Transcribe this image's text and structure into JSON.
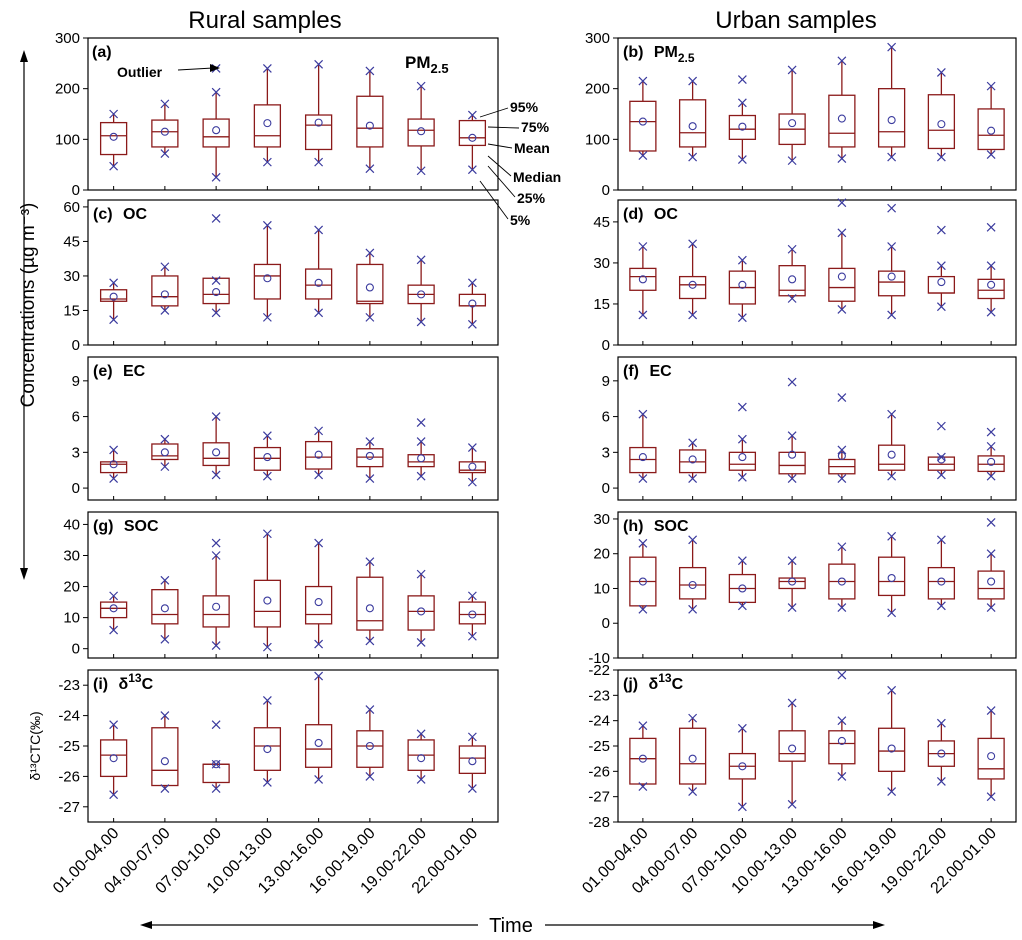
{
  "figure": {
    "left_title": "Rural samples",
    "right_title": "Urban samples",
    "ylabel": "Concentrations (µg m⁻³)",
    "xlabel": "Time",
    "bottom_ylabel": "δ¹³CTC(‰)"
  },
  "colors": {
    "box": "#8b1a1a",
    "marker": "#3b3b9e",
    "axis": "#000000"
  },
  "legend_annotations": {
    "outlier": "Outlier",
    "p95": "95%",
    "p75": "75%",
    "mean": "Mean",
    "median": "Median",
    "p25": "25%",
    "p5": "5%"
  },
  "categories": [
    "01.00-04.00",
    "04.00-07.00",
    "07.00-10.00",
    "10.00-13.00",
    "13.00-16.00",
    "16.00-19.00",
    "19.00-22.00",
    "22.00-01.00"
  ],
  "chart_data": [
    {
      "type": "box",
      "panel": "(a)",
      "label": "PM",
      "label_sub": "2.5",
      "site": "rural",
      "ylim": [
        0,
        300
      ],
      "yticks": [
        0,
        100,
        200,
        300
      ],
      "boxes": [
        {
          "p5": 47,
          "p25": 70,
          "median": 107,
          "mean": 105,
          "p75": 133,
          "p95": 150
        },
        {
          "p5": 72,
          "p25": 85,
          "median": 115,
          "mean": 115,
          "p75": 138,
          "p95": 170
        },
        {
          "p5": 25,
          "p25": 85,
          "median": 105,
          "mean": 118,
          "p75": 140,
          "p95": 193
        },
        {
          "p5": 55,
          "p25": 85,
          "median": 107,
          "mean": 132,
          "p75": 168,
          "p95": 240
        },
        {
          "p5": 55,
          "p25": 80,
          "median": 128,
          "mean": 133,
          "p75": 148,
          "p95": 248
        },
        {
          "p5": 42,
          "p25": 85,
          "median": 122,
          "mean": 127,
          "p75": 185,
          "p95": 235
        },
        {
          "p5": 38,
          "p25": 87,
          "median": 118,
          "mean": 116,
          "p75": 140,
          "p95": 205
        },
        {
          "p5": 40,
          "p25": 88,
          "median": 103,
          "mean": 103,
          "p75": 137,
          "p95": 148
        }
      ],
      "outliers": [
        {
          "i": 2,
          "v": 240
        }
      ]
    },
    {
      "type": "box",
      "panel": "(b)",
      "label": "PM",
      "label_sub": "2.5",
      "site": "urban",
      "ylim": [
        0,
        300
      ],
      "yticks": [
        0,
        100,
        200,
        300
      ],
      "boxes": [
        {
          "p5": 68,
          "p25": 77,
          "median": 135,
          "mean": 135,
          "p75": 175,
          "p95": 215
        },
        {
          "p5": 65,
          "p25": 85,
          "median": 113,
          "mean": 126,
          "p75": 178,
          "p95": 215
        },
        {
          "p5": 60,
          "p25": 100,
          "median": 120,
          "mean": 125,
          "p75": 147,
          "p95": 172
        },
        {
          "p5": 58,
          "p25": 90,
          "median": 120,
          "mean": 132,
          "p75": 150,
          "p95": 237
        },
        {
          "p5": 62,
          "p25": 85,
          "median": 112,
          "mean": 141,
          "p75": 187,
          "p95": 255
        },
        {
          "p5": 65,
          "p25": 85,
          "median": 115,
          "mean": 138,
          "p75": 200,
          "p95": 282
        },
        {
          "p5": 65,
          "p25": 82,
          "median": 118,
          "mean": 130,
          "p75": 188,
          "p95": 232
        },
        {
          "p5": 70,
          "p25": 80,
          "median": 108,
          "mean": 117,
          "p75": 160,
          "p95": 205
        }
      ],
      "outliers": [
        {
          "i": 2,
          "v": 218
        }
      ]
    },
    {
      "type": "box",
      "panel": "(c)",
      "label": "OC",
      "site": "rural",
      "ylim": [
        0,
        63
      ],
      "yticks": [
        0,
        15,
        30,
        45,
        60
      ],
      "boxes": [
        {
          "p5": 11,
          "p25": 19,
          "median": 20,
          "mean": 21,
          "p75": 24,
          "p95": 27
        },
        {
          "p5": 15,
          "p25": 17,
          "median": 21,
          "mean": 22,
          "p75": 30,
          "p95": 34
        },
        {
          "p5": 14,
          "p25": 18,
          "median": 22,
          "mean": 23,
          "p75": 29,
          "p95": 28
        },
        {
          "p5": 12,
          "p25": 20,
          "median": 30,
          "mean": 29,
          "p75": 35,
          "p95": 52
        },
        {
          "p5": 14,
          "p25": 20,
          "median": 26,
          "mean": 27,
          "p75": 33,
          "p95": 50
        },
        {
          "p5": 12,
          "p25": 18,
          "median": 19,
          "mean": 25,
          "p75": 35,
          "p95": 40
        },
        {
          "p5": 10,
          "p25": 18,
          "median": 22,
          "mean": 22,
          "p75": 26,
          "p95": 37
        },
        {
          "p5": 9,
          "p25": 17,
          "median": 17,
          "mean": 18,
          "p75": 22,
          "p95": 27
        }
      ],
      "outliers": [
        {
          "i": 2,
          "v": 55
        }
      ]
    },
    {
      "type": "box",
      "panel": "(d)",
      "label": "OC",
      "site": "urban",
      "ylim": [
        0,
        53
      ],
      "yticks": [
        0,
        15,
        30,
        45
      ],
      "boxes": [
        {
          "p5": 11,
          "p25": 20,
          "median": 25,
          "mean": 24,
          "p75": 28,
          "p95": 36
        },
        {
          "p5": 11,
          "p25": 17,
          "median": 22,
          "mean": 22,
          "p75": 25,
          "p95": 37
        },
        {
          "p5": 10,
          "p25": 15,
          "median": 21,
          "mean": 22,
          "p75": 27,
          "p95": 31
        },
        {
          "p5": 17,
          "p25": 18,
          "median": 20,
          "mean": 24,
          "p75": 29,
          "p95": 35
        },
        {
          "p5": 13,
          "p25": 16,
          "median": 21,
          "mean": 25,
          "p75": 28,
          "p95": 41
        },
        {
          "p5": 11,
          "p25": 18,
          "median": 23,
          "mean": 25,
          "p75": 27,
          "p95": 36
        },
        {
          "p5": 14,
          "p25": 19,
          "median": 19,
          "mean": 23,
          "p75": 25,
          "p95": 29
        },
        {
          "p5": 12,
          "p25": 17,
          "median": 20,
          "mean": 22,
          "p75": 24,
          "p95": 29
        }
      ],
      "outliers": [
        {
          "i": 4,
          "v": 52
        },
        {
          "i": 5,
          "v": 50
        },
        {
          "i": 6,
          "v": 42
        },
        {
          "i": 7,
          "v": 43
        }
      ]
    },
    {
      "type": "box",
      "panel": "(e)",
      "label": "EC",
      "site": "rural",
      "ylim": [
        -1,
        11
      ],
      "yticks": [
        0,
        3,
        6,
        9
      ],
      "boxes": [
        {
          "p5": 0.8,
          "p25": 1.3,
          "median": 2.0,
          "mean": 2.0,
          "p75": 2.2,
          "p95": 3.2
        },
        {
          "p5": 1.8,
          "p25": 2.4,
          "median": 2.7,
          "mean": 3.0,
          "p75": 3.7,
          "p95": 4.1
        },
        {
          "p5": 1.1,
          "p25": 1.9,
          "median": 2.5,
          "mean": 3.0,
          "p75": 3.8,
          "p95": 6.0
        },
        {
          "p5": 1.0,
          "p25": 1.5,
          "median": 2.5,
          "mean": 2.6,
          "p75": 3.4,
          "p95": 4.4
        },
        {
          "p5": 1.1,
          "p25": 1.6,
          "median": 2.6,
          "mean": 2.8,
          "p75": 3.9,
          "p95": 4.8
        },
        {
          "p5": 0.8,
          "p25": 1.8,
          "median": 2.6,
          "mean": 2.7,
          "p75": 3.3,
          "p95": 3.9
        },
        {
          "p5": 1.0,
          "p25": 1.8,
          "median": 2.2,
          "mean": 2.5,
          "p75": 2.8,
          "p95": 3.9
        },
        {
          "p5": 0.5,
          "p25": 1.3,
          "median": 1.5,
          "mean": 1.8,
          "p75": 2.2,
          "p95": 3.4
        }
      ],
      "outliers": [
        {
          "i": 6,
          "v": 5.5
        }
      ]
    },
    {
      "type": "box",
      "panel": "(f)",
      "label": "EC",
      "site": "urban",
      "ylim": [
        -1,
        11
      ],
      "yticks": [
        0,
        3,
        6,
        9
      ],
      "boxes": [
        {
          "p5": 0.8,
          "p25": 1.3,
          "median": 2.4,
          "mean": 2.6,
          "p75": 3.4,
          "p95": 6.2
        },
        {
          "p5": 0.8,
          "p25": 1.3,
          "median": 2.2,
          "mean": 2.4,
          "p75": 3.2,
          "p95": 3.8
        },
        {
          "p5": 0.9,
          "p25": 1.5,
          "median": 2.0,
          "mean": 2.6,
          "p75": 3.0,
          "p95": 4.1
        },
        {
          "p5": 0.8,
          "p25": 1.2,
          "median": 1.9,
          "mean": 2.8,
          "p75": 3.0,
          "p95": 4.4
        },
        {
          "p5": 0.8,
          "p25": 1.2,
          "median": 1.8,
          "mean": 2.7,
          "p75": 2.4,
          "p95": 3.2
        },
        {
          "p5": 1.0,
          "p25": 1.5,
          "median": 2.0,
          "mean": 2.8,
          "p75": 3.6,
          "p95": 6.2
        },
        {
          "p5": 1.1,
          "p25": 1.5,
          "median": 2.0,
          "mean": 2.4,
          "p75": 2.6,
          "p95": 2.6
        },
        {
          "p5": 1.0,
          "p25": 1.4,
          "median": 2.0,
          "mean": 2.2,
          "p75": 2.7,
          "p95": 3.5
        }
      ],
      "outliers": [
        {
          "i": 2,
          "v": 6.8
        },
        {
          "i": 3,
          "v": 8.9
        },
        {
          "i": 4,
          "v": 7.6
        },
        {
          "i": 6,
          "v": 5.2
        },
        {
          "i": 7,
          "v": 4.7
        }
      ]
    },
    {
      "type": "box",
      "panel": "(g)",
      "label": "SOC",
      "site": "rural",
      "ylim": [
        -3,
        44
      ],
      "yticks": [
        0,
        10,
        20,
        30,
        40
      ],
      "boxes": [
        {
          "p5": 6,
          "p25": 10,
          "median": 13,
          "mean": 13,
          "p75": 15,
          "p95": 17
        },
        {
          "p5": 3,
          "p25": 8,
          "median": 11,
          "mean": 13,
          "p75": 19,
          "p95": 22
        },
        {
          "p5": 1,
          "p25": 7,
          "median": 11,
          "mean": 13.5,
          "p75": 17,
          "p95": 30
        },
        {
          "p5": 0.5,
          "p25": 7,
          "median": 12,
          "mean": 15.5,
          "p75": 22,
          "p95": 37
        },
        {
          "p5": 1.5,
          "p25": 8,
          "median": 11,
          "mean": 15,
          "p75": 20,
          "p95": 34
        },
        {
          "p5": 2.5,
          "p25": 6,
          "median": 9,
          "mean": 13,
          "p75": 23,
          "p95": 28
        },
        {
          "p5": 2,
          "p25": 6,
          "median": 12,
          "mean": 12,
          "p75": 17,
          "p95": 24
        },
        {
          "p5": 4,
          "p25": 8,
          "median": 11,
          "mean": 11,
          "p75": 15,
          "p95": 17
        }
      ],
      "outliers": [
        {
          "i": 2,
          "v": 34
        }
      ]
    },
    {
      "type": "box",
      "panel": "(h)",
      "label": "SOC",
      "site": "urban",
      "ylim": [
        -10,
        32
      ],
      "yticks": [
        -10,
        0,
        10,
        20,
        30
      ],
      "boxes": [
        {
          "p5": 4,
          "p25": 5,
          "median": 12,
          "mean": 12,
          "p75": 19,
          "p95": 23
        },
        {
          "p5": 4,
          "p25": 7,
          "median": 11,
          "mean": 11,
          "p75": 16,
          "p95": 24
        },
        {
          "p5": 5,
          "p25": 6,
          "median": 10,
          "mean": 10,
          "p75": 14,
          "p95": 18
        },
        {
          "p5": 4.5,
          "p25": 10,
          "median": 12,
          "mean": 12,
          "p75": 13,
          "p95": 18
        },
        {
          "p5": 4.5,
          "p25": 7,
          "median": 12,
          "mean": 12,
          "p75": 17,
          "p95": 22
        },
        {
          "p5": 3,
          "p25": 8,
          "median": 12,
          "mean": 13,
          "p75": 19,
          "p95": 25
        },
        {
          "p5": 5,
          "p25": 7,
          "median": 12,
          "mean": 12,
          "p75": 16,
          "p95": 24
        },
        {
          "p5": 4.5,
          "p25": 7,
          "median": 10,
          "mean": 12,
          "p75": 15,
          "p95": 20
        }
      ],
      "outliers": [
        {
          "i": 7,
          "v": 29
        }
      ]
    },
    {
      "type": "box",
      "panel": "(i)",
      "label": "δ",
      "label_sup": "13",
      "label_tail": "C",
      "site": "rural",
      "ylim": [
        -27.5,
        -22.5
      ],
      "yticks": [
        -27,
        -26,
        -25,
        -24,
        -23
      ],
      "boxes": [
        {
          "p5": -26.6,
          "p25": -26.0,
          "median": -25.3,
          "mean": -25.4,
          "p75": -24.8,
          "p95": -24.3
        },
        {
          "p5": -26.4,
          "p25": -26.3,
          "median": -25.8,
          "mean": -25.5,
          "p75": -24.4,
          "p95": -24.0
        },
        {
          "p5": -26.4,
          "p25": -26.2,
          "median": -25.6,
          "mean": -25.6,
          "p75": -25.6,
          "p95": -25.6
        },
        {
          "p5": -26.2,
          "p25": -25.8,
          "median": -25.0,
          "mean": -25.1,
          "p75": -24.4,
          "p95": -23.5
        },
        {
          "p5": -26.1,
          "p25": -25.7,
          "median": -25.1,
          "mean": -24.9,
          "p75": -24.3,
          "p95": -22.7
        },
        {
          "p5": -26.0,
          "p25": -25.7,
          "median": -25.0,
          "mean": -25.0,
          "p75": -24.5,
          "p95": -23.8
        },
        {
          "p5": -26.1,
          "p25": -25.8,
          "median": -25.3,
          "mean": -25.4,
          "p75": -24.8,
          "p95": -24.6
        },
        {
          "p5": -26.4,
          "p25": -25.9,
          "median": -25.4,
          "mean": -25.5,
          "p75": -25.0,
          "p95": -24.7
        }
      ],
      "outliers": [
        {
          "i": 2,
          "v": -24.3
        }
      ]
    },
    {
      "type": "box",
      "panel": "(j)",
      "label": "δ",
      "label_sup": "13",
      "label_tail": "C",
      "site": "urban",
      "ylim": [
        -28,
        -22
      ],
      "yticks": [
        -28,
        -27,
        -26,
        -25,
        -24,
        -23,
        -22
      ],
      "boxes": [
        {
          "p5": -26.6,
          "p25": -26.5,
          "median": -25.5,
          "mean": -25.5,
          "p75": -24.7,
          "p95": -24.2
        },
        {
          "p5": -26.8,
          "p25": -26.5,
          "median": -25.7,
          "mean": -25.5,
          "p75": -24.3,
          "p95": -23.9
        },
        {
          "p5": -27.4,
          "p25": -26.3,
          "median": -25.8,
          "mean": -25.8,
          "p75": -25.3,
          "p95": -24.3
        },
        {
          "p5": -27.3,
          "p25": -25.6,
          "median": -25.3,
          "mean": -25.1,
          "p75": -24.4,
          "p95": -23.3
        },
        {
          "p5": -26.2,
          "p25": -25.7,
          "median": -24.9,
          "mean": -24.8,
          "p75": -24.4,
          "p95": -24.0
        },
        {
          "p5": -26.8,
          "p25": -26.0,
          "median": -25.2,
          "mean": -25.1,
          "p75": -24.3,
          "p95": -22.8
        },
        {
          "p5": -26.4,
          "p25": -25.8,
          "median": -25.3,
          "mean": -25.3,
          "p75": -24.8,
          "p95": -24.1
        },
        {
          "p5": -27.0,
          "p25": -26.3,
          "median": -25.9,
          "mean": -25.4,
          "p75": -24.7,
          "p95": -23.6
        }
      ],
      "outliers": [
        {
          "i": 4,
          "v": -22.2
        }
      ]
    }
  ]
}
